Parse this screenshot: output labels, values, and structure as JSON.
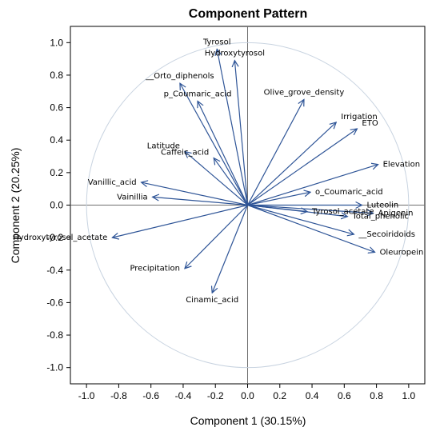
{
  "chart_data": {
    "type": "scatter",
    "title": "Component Pattern",
    "xlabel": "Component 1 (30.15%)",
    "ylabel": "Component 2 (20.25%)",
    "xlim": [
      -1.1,
      1.1
    ],
    "ylim": [
      -1.1,
      1.1
    ],
    "xticks": [
      "-1.0",
      "-0.8",
      "-0.6",
      "-0.4",
      "-0.2",
      "0.0",
      "0.2",
      "0.4",
      "0.6",
      "0.8",
      "1.0"
    ],
    "yticks": [
      "1.0",
      "0.8",
      "0.6",
      "0.4",
      "0.2",
      "0.0",
      "-0.2",
      "-0.4",
      "-0.6",
      "-0.8",
      "-1.0"
    ],
    "unit_circle": true,
    "reference_lines": [
      0,
      0
    ],
    "arrow_color": "#2f5597",
    "circle_color": "#c8d3e0",
    "vectors": [
      {
        "label": "Tyrosol",
        "x": -0.19,
        "y": 0.96
      },
      {
        "label": "Hydroxytyrosol",
        "x": -0.08,
        "y": 0.89
      },
      {
        "label": "__Orto_diphenols",
        "x": -0.42,
        "y": 0.75
      },
      {
        "label": "p_Coumaric_acid",
        "x": -0.31,
        "y": 0.64
      },
      {
        "label": "Olive_grove_density",
        "x": 0.35,
        "y": 0.65
      },
      {
        "label": "Irrigation",
        "x": 0.55,
        "y": 0.51
      },
      {
        "label": "ETO",
        "x": 0.68,
        "y": 0.47
      },
      {
        "label": "Latitude",
        "x": -0.39,
        "y": 0.33
      },
      {
        "label": "Caffeic_acid",
        "x": -0.21,
        "y": 0.29
      },
      {
        "label": "Elevation",
        "x": 0.81,
        "y": 0.25
      },
      {
        "label": "Vanillic_acid",
        "x": -0.66,
        "y": 0.14
      },
      {
        "label": "o_Coumaric_acid",
        "x": 0.39,
        "y": 0.08
      },
      {
        "label": "Vainillia",
        "x": -0.59,
        "y": 0.05
      },
      {
        "label": "Tyrosol_acetate",
        "x": 0.37,
        "y": -0.04
      },
      {
        "label": "Luteolin",
        "x": 0.71,
        "y": 0.0
      },
      {
        "label": "Apigenin",
        "x": 0.78,
        "y": -0.05
      },
      {
        "label": "Total_phenolic",
        "x": 0.62,
        "y": -0.07
      },
      {
        "label": "__Secoiridoids",
        "x": 0.66,
        "y": -0.18
      },
      {
        "label": "Oleuropein",
        "x": 0.79,
        "y": -0.29
      },
      {
        "label": "Hydroxytyrosol_acetate",
        "x": -0.84,
        "y": -0.2
      },
      {
        "label": "Precipitation",
        "x": -0.39,
        "y": -0.39
      },
      {
        "label": "Cinamic_acid",
        "x": -0.22,
        "y": -0.54
      }
    ]
  }
}
